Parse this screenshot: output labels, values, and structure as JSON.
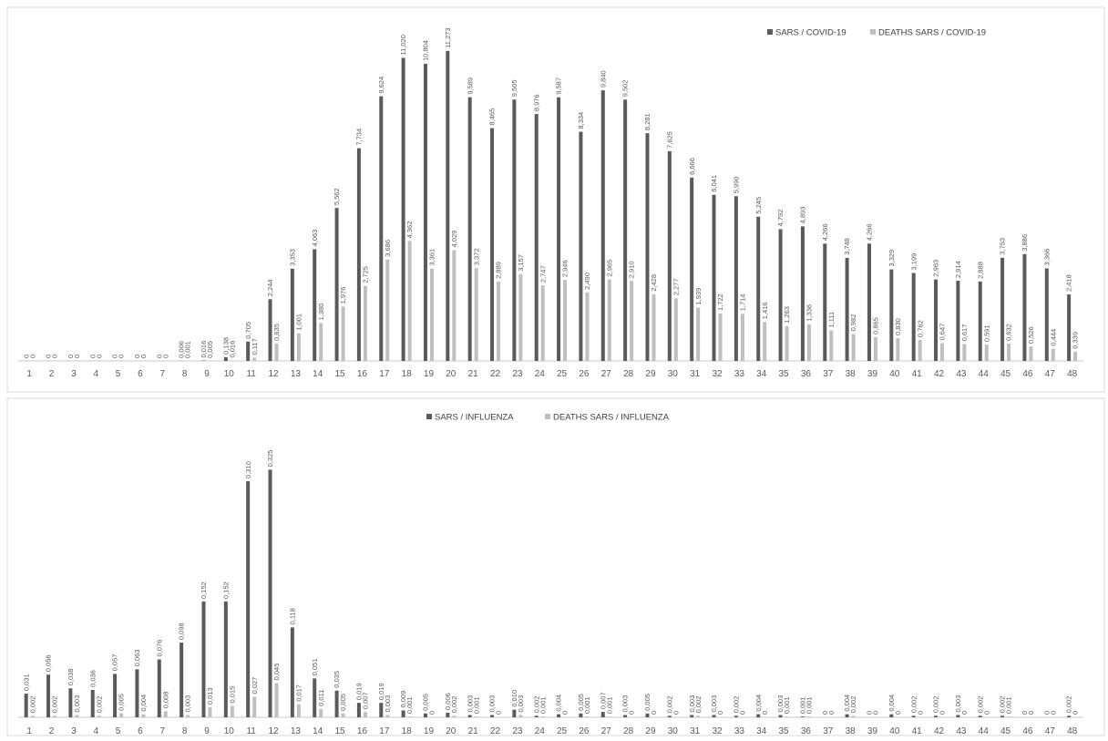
{
  "colors": {
    "series_main": "#5a5a5a",
    "series_deaths": "#bfbfbf",
    "axis": "#c8c8c8",
    "text": "#595959"
  },
  "chart_data": [
    {
      "type": "bar",
      "grid": false,
      "legend_placement": "top-right",
      "categories": [
        "1",
        "2",
        "3",
        "4",
        "5",
        "6",
        "7",
        "8",
        "9",
        "10",
        "11",
        "12",
        "13",
        "14",
        "15",
        "16",
        "17",
        "18",
        "19",
        "20",
        "21",
        "22",
        "23",
        "24",
        "25",
        "26",
        "27",
        "28",
        "29",
        "30",
        "31",
        "32",
        "33",
        "34",
        "35",
        "36",
        "37",
        "38",
        "39",
        "40",
        "41",
        "42",
        "43",
        "44",
        "45",
        "46",
        "47",
        "48"
      ],
      "ylim": [
        0,
        11.6
      ],
      "series": [
        {
          "name": "SARS / COVID-19",
          "values": [
            0,
            0,
            0,
            0,
            0,
            0,
            0,
            0.006,
            0.016,
            0.138,
            0.705,
            2.244,
            3.353,
            4.063,
            5.562,
            7.734,
            9.624,
            11.02,
            10.804,
            11.273,
            9.589,
            8.465,
            9.505,
            8.976,
            9.587,
            8.334,
            9.84,
            9.502,
            8.281,
            7.625,
            6.666,
            6.041,
            5.99,
            5.245,
            4.792,
            4.893,
            4.266,
            3.748,
            4.266,
            3.329,
            3.199,
            2.963,
            2.914,
            2.888,
            3.753,
            3.886,
            3.366,
            2.418
          ],
          "labels": [
            "0",
            "0",
            "0",
            "0",
            "0",
            "0",
            "0",
            "0,006",
            "0,016",
            "0,138",
            "0,705",
            "2,244",
            "3,353",
            "4,063",
            "5,562",
            "7,734",
            "9,624",
            "11,020",
            "10,804",
            "11,273",
            "9,589",
            "8,465",
            "9,505",
            "8,976",
            "9,587",
            "8,334",
            "9,840",
            "9,502",
            "8,281",
            "7,625",
            "6,666",
            "6,041",
            "5,990",
            "5,245",
            "4,792",
            "4,893",
            "4,266",
            "3,748",
            "4,266",
            "3,329",
            "3,199",
            "2,963",
            "2,914",
            "2,888",
            "3,753",
            "3,886",
            "3,366",
            "2,418"
          ]
        },
        {
          "name": "DEATHS SARS / COVID-19",
          "values": [
            0,
            0,
            0,
            0,
            0,
            0,
            0,
            0.001,
            0.005,
            0.016,
            0.117,
            0.635,
            1.001,
            1.38,
            1.976,
            2.725,
            3.686,
            4.362,
            3.361,
            4.029,
            3.372,
            2.889,
            3.157,
            2.747,
            2.946,
            2.49,
            2.965,
            2.91,
            2.428,
            2.277,
            1.939,
            1.722,
            1.714,
            1.416,
            1.263,
            1.336,
            1.111,
            0.982,
            0.865,
            0.83,
            0.762,
            0.647,
            0.617,
            0.591,
            0.632,
            0.526,
            0.444,
            0.339
          ],
          "labels": [
            "0",
            "0",
            "0",
            "0",
            "0",
            "0",
            "0",
            "0,001",
            "0,005",
            "0,016",
            "0,117",
            "0,635",
            "1,001",
            "1,380",
            "1,976",
            "2,725",
            "3,686",
            "4,362",
            "3,361",
            "4,029",
            "3,372",
            "2,889",
            "3,157",
            "2,747",
            "2,946",
            "2,490",
            "2,965",
            "2,910",
            "2,428",
            "2,277",
            "1,939",
            "1,722",
            "1,714",
            "1,416",
            "1,263",
            "1,336",
            "1,111",
            "0,982",
            "0,865",
            "0,830",
            "0,762",
            "0,647",
            "0,617",
            "0,591",
            "0,632",
            "0,526",
            "0,444",
            "0,339"
          ]
        }
      ]
    },
    {
      "type": "bar",
      "grid": false,
      "legend_placement": "top-center",
      "categories": [
        "1",
        "2",
        "3",
        "4",
        "5",
        "6",
        "7",
        "8",
        "9",
        "10",
        "11",
        "12",
        "13",
        "14",
        "15",
        "16",
        "17",
        "18",
        "19",
        "20",
        "21",
        "22",
        "23",
        "24",
        "25",
        "26",
        "27",
        "28",
        "29",
        "30",
        "31",
        "32",
        "33",
        "34",
        "35",
        "36",
        "37",
        "38",
        "39",
        "40",
        "41",
        "42",
        "43",
        "44",
        "45",
        "46",
        "47",
        "48"
      ],
      "ylim": [
        0,
        0.335
      ],
      "series": [
        {
          "name": "SARS / INFLUENZA",
          "values": [
            0.031,
            0.056,
            0.038,
            0.036,
            0.057,
            0.063,
            0.076,
            0.098,
            0.152,
            0.152,
            0.31,
            0.325,
            0.118,
            0.051,
            0.035,
            0.019,
            0.019,
            0.009,
            0.005,
            0.006,
            0.003,
            0.003,
            0.01,
            0.002,
            0.004,
            0.005,
            0.007,
            0.003,
            0.005,
            0.002,
            0.003,
            0.003,
            0.002,
            0.004,
            0.003,
            0.001,
            0,
            0.004,
            0,
            0.004,
            0.002,
            0.002,
            0.003,
            0.002,
            0.002,
            0,
            0,
            0.002
          ],
          "labels": [
            "0,031",
            "0,056",
            "0,038",
            "0,036",
            "0,057",
            "0,063",
            "0,076",
            "0,098",
            "0,152",
            "0,152",
            "0,310",
            "0,325",
            "0,118",
            "0,051",
            "0,035",
            "0,019",
            "0,019",
            "0,009",
            "0,005",
            "0,006",
            "0,003",
            "0,003",
            "0,010",
            "0,002",
            "0,004",
            "0,005",
            "0,007",
            "0,003",
            "0,005",
            "0,002",
            "0,003",
            "0,003",
            "0,002",
            "0,004",
            "0,003",
            "0,001",
            "0",
            "0,004",
            "0",
            "0,004",
            "0,002",
            "0,002",
            "0,003",
            "0,002",
            "0,002",
            "0",
            "0",
            "0,002"
          ]
        },
        {
          "name": "DEATHS SARS / INFLUENZA",
          "values": [
            0.002,
            0.002,
            0.003,
            0.002,
            0.005,
            0.004,
            0.008,
            0.003,
            0.013,
            0.015,
            0.027,
            0.045,
            0.017,
            0.011,
            0.005,
            0.007,
            0.003,
            0.001,
            0,
            0.002,
            0.001,
            0,
            0.003,
            0.001,
            0,
            0.001,
            0.001,
            0,
            0,
            0,
            0.002,
            0,
            0,
            0,
            0.001,
            0.001,
            0,
            0.002,
            0,
            0,
            0,
            0,
            0,
            0,
            0.001,
            0,
            0,
            0
          ],
          "labels": [
            "0,002",
            "0,002",
            "0,003",
            "0,002",
            "0,005",
            "0,004",
            "0,008",
            "0,003",
            "0,013",
            "0,015",
            "0,027",
            "0,045",
            "0,017",
            "0,011",
            "0,005",
            "0,007",
            "0,003",
            "0,001",
            "0",
            "0,002",
            "0,001",
            "0",
            "0,003",
            "0,001",
            "0",
            "0,001",
            "0,001",
            "0",
            "0",
            "0",
            "0,002",
            "0",
            "0",
            "0",
            "0,001",
            "0,001",
            "0",
            "0,002",
            "0",
            "0",
            "0",
            "0",
            "0",
            "0",
            "0,001",
            "0",
            "0",
            "0"
          ]
        }
      ]
    }
  ]
}
